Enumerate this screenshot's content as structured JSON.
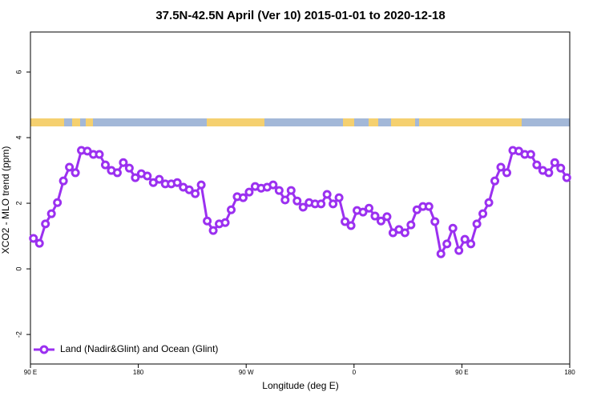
{
  "chart_data": {
    "type": "line",
    "title": "37.5N-42.5N April (Ver 10)   2015-01-01 to 2020-12-18",
    "x_label": "Longitude (deg E)",
    "y_label": "XCO2 - MLO trend (ppm)",
    "xlim": [
      90,
      540
    ],
    "xticks": [
      {
        "value": 90,
        "label": "90 E"
      },
      180,
      {
        "value": 270,
        "label": "90 W"
      },
      {
        "value": 360,
        "label": "0"
      },
      {
        "value": 450,
        "label": "90 E"
      },
      {
        "value": 540,
        "label": "180"
      }
    ],
    "ylim": [
      -2.9,
      7.22
    ],
    "yticks": [
      -2,
      0,
      2,
      4,
      6
    ],
    "legend": "bottom-left",
    "series": [
      {
        "name": "Land (Nadir&Glint) and Ocean (Glint)",
        "color": "#9b30f0",
        "x": [
          92.5,
          97.5,
          102.5,
          107.5,
          112.5,
          117.5,
          122.5,
          127.5,
          132.5,
          137.5,
          142.5,
          147.5,
          152.5,
          157.5,
          162.5,
          167.5,
          172.5,
          177.5,
          182.5,
          187.5,
          192.5,
          197.5,
          202.5,
          207.5,
          212.5,
          217.5,
          222.5,
          227.5,
          232.5,
          237.5,
          242.5,
          247.5,
          252.5,
          257.5,
          262.5,
          267.5,
          272.5,
          277.5,
          282.5,
          287.5,
          292.5,
          297.5,
          302.5,
          307.5,
          312.5,
          317.5,
          322.5,
          327.5,
          332.5,
          337.5,
          342.5,
          347.5,
          352.5,
          357.5,
          362.5,
          367.5,
          372.5,
          377.5,
          382.5,
          387.5,
          392.5,
          397.5,
          402.5,
          407.5,
          412.5,
          417.5,
          422.5,
          427.5,
          432.5,
          437.5,
          442.5,
          447.5,
          452.5,
          457.5,
          462.5,
          467.5,
          472.5,
          477.5,
          482.5,
          487.5,
          492.5,
          497.5,
          502.5,
          507.5,
          512.5,
          517.5,
          522.5,
          527.5,
          532.5,
          537.5
        ],
        "values": [
          0.93,
          0.78,
          1.37,
          1.68,
          2.02,
          2.68,
          3.1,
          2.93,
          3.61,
          3.59,
          3.49,
          3.49,
          3.17,
          3.0,
          2.93,
          3.24,
          3.07,
          2.78,
          2.9,
          2.83,
          2.63,
          2.73,
          2.59,
          2.59,
          2.63,
          2.49,
          2.41,
          2.29,
          2.56,
          1.46,
          1.17,
          1.37,
          1.41,
          1.8,
          2.2,
          2.17,
          2.34,
          2.51,
          2.46,
          2.49,
          2.56,
          2.39,
          2.1,
          2.39,
          2.07,
          1.88,
          2.02,
          1.98,
          1.98,
          2.27,
          1.98,
          2.17,
          1.44,
          1.32,
          1.78,
          1.73,
          1.85,
          1.61,
          1.46,
          1.59,
          1.1,
          1.2,
          1.1,
          1.34,
          1.8,
          1.9,
          1.9,
          1.44,
          0.46,
          0.76,
          1.24,
          0.56,
          0.9,
          0.76,
          1.37,
          1.68,
          2.02,
          2.68,
          3.1,
          2.93,
          3.61,
          3.59,
          3.49,
          3.49,
          3.17,
          3.0,
          2.93,
          3.24,
          3.07,
          2.78
        ]
      }
    ]
  }
}
